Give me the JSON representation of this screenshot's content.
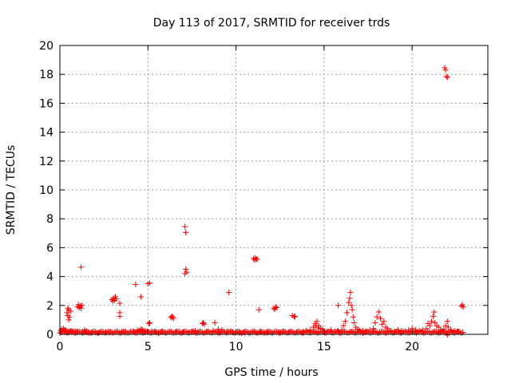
{
  "chart_data": {
    "type": "scatter",
    "title": "Day 113 of 2017, SRMTID for receiver trds",
    "xlabel": "GPS time / hours",
    "ylabel": "SRMTID / TECUs",
    "xlim": [
      0,
      24.3
    ],
    "ylim": [
      0,
      20
    ],
    "x_ticks": [
      0,
      5,
      10,
      15,
      20
    ],
    "y_ticks": [
      0,
      2,
      4,
      6,
      8,
      10,
      12,
      14,
      16,
      18,
      20
    ],
    "grid": true,
    "marker": "+",
    "color": "#ff0000",
    "series": [
      {
        "name": "SRMTID",
        "points": [
          [
            0.05,
            0.25
          ],
          [
            0.1,
            0.35
          ],
          [
            0.15,
            0.2
          ],
          [
            0.2,
            0.4
          ],
          [
            0.25,
            0.3
          ],
          [
            0.3,
            0.15
          ],
          [
            0.35,
            0.28
          ],
          [
            0.4,
            0.12
          ],
          [
            0.45,
            0.2
          ],
          [
            0.5,
            0.18
          ],
          [
            0.4,
            1.5
          ],
          [
            0.45,
            1.3
          ],
          [
            0.5,
            1.7
          ],
          [
            0.55,
            1.2
          ],
          [
            0.6,
            1.6
          ],
          [
            0.5,
            1.0
          ],
          [
            0.45,
            1.8
          ],
          [
            0.6,
            0.25
          ],
          [
            0.7,
            0.2
          ],
          [
            0.8,
            0.18
          ],
          [
            0.9,
            0.22
          ],
          [
            1.0,
            0.15
          ],
          [
            1.0,
            1.9
          ],
          [
            1.05,
            2.05
          ],
          [
            1.1,
            1.85
          ],
          [
            1.15,
            1.95
          ],
          [
            1.2,
            1.8
          ],
          [
            1.25,
            2.0
          ],
          [
            1.2,
            4.65
          ],
          [
            1.3,
            0.2
          ],
          [
            1.4,
            0.3
          ],
          [
            1.5,
            0.15
          ],
          [
            1.6,
            0.1
          ],
          [
            1.8,
            0.12
          ],
          [
            2.0,
            0.14
          ],
          [
            2.2,
            0.1
          ],
          [
            2.4,
            0.13
          ],
          [
            2.6,
            0.15
          ],
          [
            2.8,
            0.12
          ],
          [
            2.95,
            2.4
          ],
          [
            3.0,
            2.3
          ],
          [
            3.05,
            2.5
          ],
          [
            3.1,
            2.35
          ],
          [
            3.15,
            2.6
          ],
          [
            3.2,
            2.45
          ],
          [
            3.4,
            2.15
          ],
          [
            3.4,
            1.5
          ],
          [
            3.4,
            1.25
          ],
          [
            3.2,
            0.15
          ],
          [
            3.5,
            0.2
          ],
          [
            3.7,
            0.12
          ],
          [
            4.0,
            0.18
          ],
          [
            4.2,
            0.2
          ],
          [
            4.3,
            3.45
          ],
          [
            4.6,
            2.6
          ],
          [
            4.4,
            0.3
          ],
          [
            4.5,
            0.25
          ],
          [
            4.6,
            0.35
          ],
          [
            4.7,
            0.3
          ],
          [
            4.8,
            0.25
          ],
          [
            5.0,
            3.5
          ],
          [
            5.1,
            3.55
          ],
          [
            5.05,
            0.75
          ],
          [
            5.1,
            0.8
          ],
          [
            5.2,
            0.2
          ],
          [
            5.4,
            0.15
          ],
          [
            5.6,
            0.12
          ],
          [
            5.8,
            0.18
          ],
          [
            6.0,
            0.12
          ],
          [
            6.3,
            1.15
          ],
          [
            6.35,
            1.25
          ],
          [
            6.4,
            1.2
          ],
          [
            6.45,
            1.1
          ],
          [
            6.6,
            0.15
          ],
          [
            6.8,
            0.2
          ],
          [
            7.0,
            0.15
          ],
          [
            7.1,
            7.45
          ],
          [
            7.15,
            7.05
          ],
          [
            7.1,
            4.2
          ],
          [
            7.15,
            4.5
          ],
          [
            7.2,
            4.3
          ],
          [
            7.3,
            0.15
          ],
          [
            7.5,
            0.2
          ],
          [
            7.7,
            0.25
          ],
          [
            7.9,
            0.15
          ],
          [
            8.1,
            0.75
          ],
          [
            8.15,
            0.8
          ],
          [
            8.2,
            0.7
          ],
          [
            8.4,
            0.2
          ],
          [
            8.7,
            0.25
          ],
          [
            8.8,
            0.8
          ],
          [
            9.0,
            0.35
          ],
          [
            9.2,
            0.3
          ],
          [
            9.6,
            2.9
          ],
          [
            9.5,
            0.2
          ],
          [
            9.8,
            0.15
          ],
          [
            10.0,
            0.12
          ],
          [
            10.2,
            0.1
          ],
          [
            10.5,
            0.12
          ],
          [
            10.8,
            0.1
          ],
          [
            11.0,
            5.25
          ],
          [
            11.05,
            5.15
          ],
          [
            11.1,
            5.3
          ],
          [
            11.15,
            5.2
          ],
          [
            11.2,
            5.2
          ],
          [
            11.3,
            1.7
          ],
          [
            11.4,
            0.15
          ],
          [
            11.6,
            0.12
          ],
          [
            11.8,
            0.1
          ],
          [
            12.0,
            0.15
          ],
          [
            12.15,
            1.8
          ],
          [
            12.2,
            1.75
          ],
          [
            12.25,
            1.9
          ],
          [
            12.3,
            1.85
          ],
          [
            12.5,
            0.15
          ],
          [
            12.7,
            0.2
          ],
          [
            13.0,
            0.15
          ],
          [
            13.2,
            1.3
          ],
          [
            13.3,
            1.2
          ],
          [
            13.35,
            1.25
          ],
          [
            13.5,
            0.15
          ],
          [
            13.8,
            0.2
          ],
          [
            14.0,
            0.25
          ],
          [
            14.2,
            0.3
          ],
          [
            14.4,
            0.5
          ],
          [
            14.5,
            0.75
          ],
          [
            14.55,
            0.6
          ],
          [
            14.6,
            0.9
          ],
          [
            14.65,
            0.45
          ],
          [
            14.7,
            0.6
          ],
          [
            14.8,
            0.4
          ],
          [
            14.9,
            0.35
          ],
          [
            15.0,
            0.25
          ],
          [
            15.2,
            0.2
          ],
          [
            15.4,
            0.3
          ],
          [
            15.6,
            0.2
          ],
          [
            15.8,
            0.25
          ],
          [
            15.8,
            2.0
          ],
          [
            16.0,
            0.3
          ],
          [
            16.1,
            0.6
          ],
          [
            16.2,
            0.9
          ],
          [
            16.3,
            1.5
          ],
          [
            16.4,
            2.2
          ],
          [
            16.45,
            2.5
          ],
          [
            16.5,
            2.9
          ],
          [
            16.55,
            2.0
          ],
          [
            16.6,
            1.7
          ],
          [
            16.65,
            1.2
          ],
          [
            16.7,
            0.8
          ],
          [
            16.8,
            0.5
          ],
          [
            16.9,
            0.35
          ],
          [
            17.0,
            0.3
          ],
          [
            17.2,
            0.25
          ],
          [
            17.4,
            0.2
          ],
          [
            17.6,
            0.3
          ],
          [
            17.8,
            0.4
          ],
          [
            17.9,
            0.8
          ],
          [
            18.0,
            1.2
          ],
          [
            18.1,
            1.55
          ],
          [
            18.2,
            1.1
          ],
          [
            18.3,
            0.7
          ],
          [
            18.4,
            0.9
          ],
          [
            18.5,
            0.5
          ],
          [
            18.6,
            0.4
          ],
          [
            18.8,
            0.25
          ],
          [
            19.0,
            0.2
          ],
          [
            19.2,
            0.3
          ],
          [
            19.4,
            0.25
          ],
          [
            19.6,
            0.2
          ],
          [
            19.8,
            0.3
          ],
          [
            20.0,
            0.4
          ],
          [
            20.2,
            0.3
          ],
          [
            20.4,
            0.25
          ],
          [
            20.6,
            0.3
          ],
          [
            20.8,
            0.4
          ],
          [
            20.9,
            0.75
          ],
          [
            21.0,
            0.6
          ],
          [
            21.1,
            0.9
          ],
          [
            21.2,
            1.25
          ],
          [
            21.25,
            1.55
          ],
          [
            21.3,
            0.8
          ],
          [
            21.4,
            0.6
          ],
          [
            21.5,
            0.5
          ],
          [
            21.6,
            0.3
          ],
          [
            21.7,
            0.25
          ],
          [
            21.8,
            0.35
          ],
          [
            21.85,
            18.45
          ],
          [
            21.9,
            18.3
          ],
          [
            21.95,
            17.85
          ],
          [
            22.0,
            17.8
          ],
          [
            21.9,
            0.6
          ],
          [
            22.0,
            0.9
          ],
          [
            22.05,
            0.5
          ],
          [
            22.0,
            -0.05
          ],
          [
            22.2,
            0.3
          ],
          [
            22.4,
            0.25
          ],
          [
            22.6,
            0.2
          ],
          [
            22.8,
            1.95
          ],
          [
            22.85,
            2.05
          ],
          [
            22.9,
            1.9
          ]
        ]
      }
    ]
  }
}
